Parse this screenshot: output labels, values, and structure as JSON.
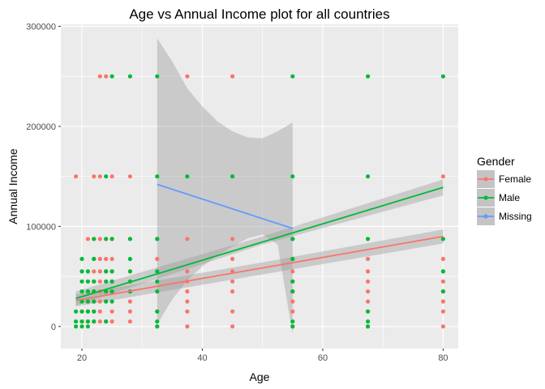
{
  "chart_data": {
    "type": "scatter",
    "title": "Age vs Annual Income plot for all countries",
    "xlabel": "Age",
    "ylabel": "Annual Income",
    "xlim": [
      16.5,
      82.5
    ],
    "ylim": [
      -22000,
      302000
    ],
    "x_ticks": [
      20,
      40,
      60,
      80
    ],
    "x_tick_labels": [
      "20",
      "40",
      "60",
      "80"
    ],
    "y_ticks": [
      0,
      100000,
      200000,
      300000
    ],
    "y_tick_labels": [
      "0",
      "100000",
      "200000",
      "300000"
    ],
    "x_minor": [
      30,
      50,
      70
    ],
    "y_minor": [
      50000,
      150000,
      250000
    ],
    "grid": true,
    "legend": {
      "title": "Gender",
      "placement": "right",
      "entries": [
        "Female",
        "Male",
        "Missing"
      ]
    },
    "colors": {
      "Female": "#F8766D",
      "Male": "#00BA38",
      "Missing": "#619CFF",
      "panel": "#EBEBEB",
      "grid": "#FFFFFF",
      "ribbon": "#999999"
    },
    "series": [
      {
        "name": "Female",
        "points": [
          [
            19,
            150000
          ],
          [
            20,
            5000
          ],
          [
            21,
            5000
          ],
          [
            22,
            5000
          ],
          [
            23,
            5000
          ],
          [
            24,
            5000
          ],
          [
            25,
            5000
          ],
          [
            28,
            5000
          ],
          [
            32.5,
            0
          ],
          [
            37.5,
            0
          ],
          [
            45,
            0
          ],
          [
            55,
            0
          ],
          [
            67.5,
            0
          ],
          [
            80,
            0
          ],
          [
            20,
            15000
          ],
          [
            21,
            15000
          ],
          [
            22,
            15000
          ],
          [
            23,
            15000
          ],
          [
            25,
            15000
          ],
          [
            28,
            15000
          ],
          [
            32.5,
            15000
          ],
          [
            37.5,
            15000
          ],
          [
            45,
            15000
          ],
          [
            55,
            15000
          ],
          [
            67.5,
            15000
          ],
          [
            80,
            15000
          ],
          [
            21,
            25000
          ],
          [
            22,
            25000
          ],
          [
            23,
            25000
          ],
          [
            24,
            25000
          ],
          [
            28,
            25000
          ],
          [
            37.5,
            25000
          ],
          [
            55,
            25000
          ],
          [
            67.5,
            25000
          ],
          [
            80,
            25000
          ],
          [
            21,
            35000
          ],
          [
            22,
            35000
          ],
          [
            23,
            35000
          ],
          [
            24,
            35000
          ],
          [
            25,
            35000
          ],
          [
            28,
            35000
          ],
          [
            37.5,
            35000
          ],
          [
            45,
            35000
          ],
          [
            55,
            35000
          ],
          [
            67.5,
            35000
          ],
          [
            80,
            35000
          ],
          [
            22,
            45000
          ],
          [
            23,
            45000
          ],
          [
            25,
            45000
          ],
          [
            28,
            45000
          ],
          [
            37.5,
            45000
          ],
          [
            45,
            45000
          ],
          [
            55,
            45000
          ],
          [
            67.5,
            45000
          ],
          [
            80,
            45000
          ],
          [
            22,
            55000
          ],
          [
            23,
            55000
          ],
          [
            24,
            55000
          ],
          [
            25,
            55000
          ],
          [
            28,
            55000
          ],
          [
            37.5,
            55000
          ],
          [
            45,
            55000
          ],
          [
            55,
            55000
          ],
          [
            67.5,
            55000
          ],
          [
            80,
            55000
          ],
          [
            22,
            67500
          ],
          [
            23,
            67500
          ],
          [
            24,
            67500
          ],
          [
            25,
            67500
          ],
          [
            32.5,
            67500
          ],
          [
            45,
            67500
          ],
          [
            55,
            67500
          ],
          [
            67.5,
            67500
          ],
          [
            80,
            67500
          ],
          [
            21,
            87500
          ],
          [
            22,
            87500
          ],
          [
            23,
            87500
          ],
          [
            24,
            87500
          ],
          [
            25,
            87500
          ],
          [
            28,
            87500
          ],
          [
            32.5,
            87500
          ],
          [
            37.5,
            87500
          ],
          [
            45,
            87500
          ],
          [
            55,
            87500
          ],
          [
            22,
            150000
          ],
          [
            23,
            150000
          ],
          [
            25,
            150000
          ],
          [
            28,
            150000
          ],
          [
            80,
            150000
          ],
          [
            23,
            250000
          ],
          [
            24,
            250000
          ],
          [
            37.5,
            250000
          ],
          [
            45,
            250000
          ]
        ],
        "fit": [
          [
            19,
            26000
          ],
          [
            80,
            90000
          ]
        ],
        "band": [
          [
            19,
            20000,
            32000
          ],
          [
            50,
            52000,
            64000
          ],
          [
            80,
            83000,
            97000
          ]
        ]
      },
      {
        "name": "Male",
        "points": [
          [
            19,
            0
          ],
          [
            20,
            0
          ],
          [
            21,
            0
          ],
          [
            32.5,
            0
          ],
          [
            55,
            0
          ],
          [
            67.5,
            0
          ],
          [
            19,
            5000
          ],
          [
            20,
            5000
          ],
          [
            21,
            5000
          ],
          [
            22,
            5000
          ],
          [
            24,
            5000
          ],
          [
            32.5,
            5000
          ],
          [
            55,
            5000
          ],
          [
            67.5,
            5000
          ],
          [
            19,
            15000
          ],
          [
            20,
            15000
          ],
          [
            21,
            15000
          ],
          [
            22,
            15000
          ],
          [
            32.5,
            15000
          ],
          [
            67.5,
            15000
          ],
          [
            20,
            25000
          ],
          [
            21,
            25000
          ],
          [
            22,
            25000
          ],
          [
            24,
            25000
          ],
          [
            25,
            25000
          ],
          [
            20,
            35000
          ],
          [
            21,
            35000
          ],
          [
            22,
            35000
          ],
          [
            24,
            35000
          ],
          [
            25,
            35000
          ],
          [
            28,
            35000
          ],
          [
            32.5,
            35000
          ],
          [
            55,
            35000
          ],
          [
            80,
            35000
          ],
          [
            20,
            45000
          ],
          [
            21,
            45000
          ],
          [
            22,
            45000
          ],
          [
            24,
            45000
          ],
          [
            25,
            45000
          ],
          [
            28,
            45000
          ],
          [
            32.5,
            45000
          ],
          [
            55,
            45000
          ],
          [
            20,
            55000
          ],
          [
            21,
            55000
          ],
          [
            24,
            55000
          ],
          [
            25,
            55000
          ],
          [
            28,
            55000
          ],
          [
            32.5,
            55000
          ],
          [
            80,
            55000
          ],
          [
            20,
            67500
          ],
          [
            22,
            67500
          ],
          [
            28,
            67500
          ],
          [
            55,
            67500
          ],
          [
            22,
            87500
          ],
          [
            24,
            87500
          ],
          [
            25,
            87500
          ],
          [
            28,
            87500
          ],
          [
            32.5,
            87500
          ],
          [
            55,
            87500
          ],
          [
            67.5,
            87500
          ],
          [
            80,
            87500
          ],
          [
            24,
            150000
          ],
          [
            32.5,
            150000
          ],
          [
            37.5,
            150000
          ],
          [
            45,
            150000
          ],
          [
            55,
            150000
          ],
          [
            67.5,
            150000
          ],
          [
            25,
            250000
          ],
          [
            28,
            250000
          ],
          [
            32.5,
            250000
          ],
          [
            55,
            250000
          ],
          [
            67.5,
            250000
          ],
          [
            80,
            250000
          ]
        ],
        "fit": [
          [
            19,
            28000
          ],
          [
            80,
            139000
          ]
        ],
        "band": [
          [
            19,
            21000,
            35000
          ],
          [
            50,
            82000,
            90000
          ],
          [
            80,
            131000,
            147000
          ]
        ]
      },
      {
        "name": "Missing",
        "points": [],
        "fit": [
          [
            32.5,
            142000
          ],
          [
            55,
            98000
          ]
        ],
        "band": [
          [
            32.5,
            2000,
            288000
          ],
          [
            35,
            27000,
            265000
          ],
          [
            37.5,
            46000,
            238000
          ],
          [
            40,
            60000,
            220000
          ],
          [
            42.5,
            71000,
            205000
          ],
          [
            45,
            80000,
            195000
          ],
          [
            47.5,
            88000,
            189000
          ],
          [
            50,
            92000,
            188000
          ],
          [
            52.5,
            82000,
            195000
          ],
          [
            55,
            -8000,
            204000
          ]
        ]
      }
    ]
  }
}
